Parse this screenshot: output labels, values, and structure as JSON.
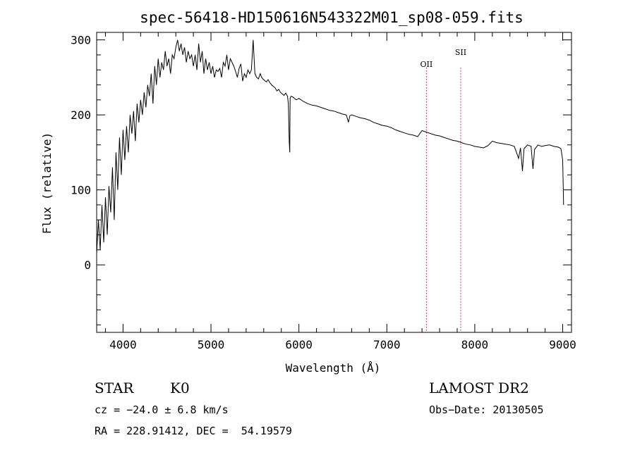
{
  "chart_data": {
    "type": "line",
    "title": "spec-56418-HD150616N543322M01_sp08-059.fits",
    "xlabel": "Wavelength (Å)",
    "ylabel": "Flux (relative)",
    "xlim": [
      3700,
      9100
    ],
    "ylim": [
      -90,
      310
    ],
    "x_ticks": [
      4000,
      5000,
      6000,
      7000,
      8000,
      9000
    ],
    "y_ticks": [
      0,
      100,
      200,
      300
    ],
    "grid": false,
    "series": [
      {
        "color": "#000000",
        "x": [
          3700,
          3720,
          3740,
          3760,
          3780,
          3800,
          3820,
          3840,
          3860,
          3880,
          3900,
          3920,
          3940,
          3960,
          3980,
          4000,
          4020,
          4040,
          4060,
          4080,
          4100,
          4120,
          4140,
          4160,
          4180,
          4200,
          4220,
          4240,
          4260,
          4280,
          4300,
          4320,
          4340,
          4360,
          4380,
          4400,
          4420,
          4440,
          4460,
          4480,
          4500,
          4520,
          4540,
          4560,
          4580,
          4600,
          4620,
          4640,
          4660,
          4680,
          4700,
          4720,
          4740,
          4760,
          4780,
          4800,
          4820,
          4840,
          4860,
          4880,
          4900,
          4920,
          4940,
          4960,
          4980,
          5000,
          5020,
          5040,
          5060,
          5080,
          5100,
          5120,
          5140,
          5160,
          5180,
          5200,
          5220,
          5240,
          5260,
          5280,
          5300,
          5320,
          5340,
          5360,
          5380,
          5400,
          5420,
          5440,
          5460,
          5480,
          5500,
          5520,
          5540,
          5560,
          5577,
          5590,
          5610,
          5630,
          5650,
          5670,
          5690,
          5710,
          5730,
          5750,
          5770,
          5790,
          5810,
          5830,
          5850,
          5870,
          5880,
          5890,
          5896,
          5900,
          5910,
          5930,
          5950,
          5970,
          6000,
          6050,
          6100,
          6150,
          6200,
          6250,
          6300,
          6350,
          6400,
          6450,
          6500,
          6540,
          6563,
          6580,
          6600,
          6650,
          6700,
          6750,
          6800,
          6850,
          6900,
          6950,
          7000,
          7050,
          7100,
          7150,
          7200,
          7250,
          7300,
          7350,
          7400,
          7450,
          7500,
          7550,
          7600,
          7650,
          7700,
          7750,
          7800,
          7850,
          7900,
          7950,
          8000,
          8050,
          8100,
          8150,
          8200,
          8250,
          8300,
          8350,
          8400,
          8450,
          8498,
          8520,
          8542,
          8560,
          8600,
          8640,
          8662,
          8680,
          8720,
          8760,
          8800,
          8850,
          8900,
          8950,
          8980,
          9000,
          9010
        ],
        "values": [
          15,
          60,
          20,
          80,
          30,
          90,
          40,
          105,
          70,
          130,
          60,
          150,
          100,
          170,
          120,
          180,
          140,
          185,
          150,
          200,
          175,
          205,
          165,
          215,
          190,
          220,
          200,
          230,
          210,
          240,
          225,
          255,
          215,
          265,
          240,
          275,
          250,
          270,
          260,
          285,
          265,
          275,
          255,
          280,
          275,
          290,
          300,
          285,
          295,
          280,
          290,
          270,
          285,
          275,
          280,
          265,
          280,
          260,
          295,
          270,
          285,
          255,
          275,
          260,
          270,
          255,
          265,
          250,
          260,
          258,
          262,
          250,
          270,
          265,
          280,
          260,
          275,
          270,
          265,
          258,
          250,
          262,
          268,
          245,
          255,
          250,
          260,
          255,
          260,
          300,
          255,
          250,
          248,
          255,
          250,
          248,
          246,
          244,
          247,
          243,
          240,
          238,
          236,
          232,
          234,
          230,
          228,
          226,
          229,
          225,
          215,
          165,
          150,
          222,
          225,
          224,
          222,
          220,
          222,
          218,
          215,
          213,
          212,
          210,
          208,
          206,
          205,
          203,
          201,
          200,
          190,
          199,
          200,
          198,
          196,
          195,
          193,
          190,
          188,
          186,
          185,
          183,
          180,
          178,
          176,
          174,
          173,
          171,
          179,
          177,
          175,
          173,
          172,
          170,
          168,
          166,
          165,
          163,
          161,
          160,
          158,
          157,
          156,
          159,
          165,
          163,
          162,
          161,
          160,
          158,
          142,
          156,
          125,
          155,
          160,
          158,
          128,
          154,
          160,
          158,
          159,
          160,
          158,
          157,
          155,
          140,
          80
        ],
        "_note": "approximate reading of the plotted spectrum"
      }
    ],
    "annotations": [
      {
        "label": "OII",
        "x": 7450
      },
      {
        "label": "SII",
        "x": 7840
      }
    ]
  },
  "info": {
    "object_class": "STAR",
    "subclass": "K0",
    "cz": "cz = −24.0 ± 6.8 km/s",
    "coords": "RA = 228.91412, DEC =  54.19579",
    "survey": "LAMOST DR2",
    "obs_date": "Obs−Date: 20130505"
  }
}
